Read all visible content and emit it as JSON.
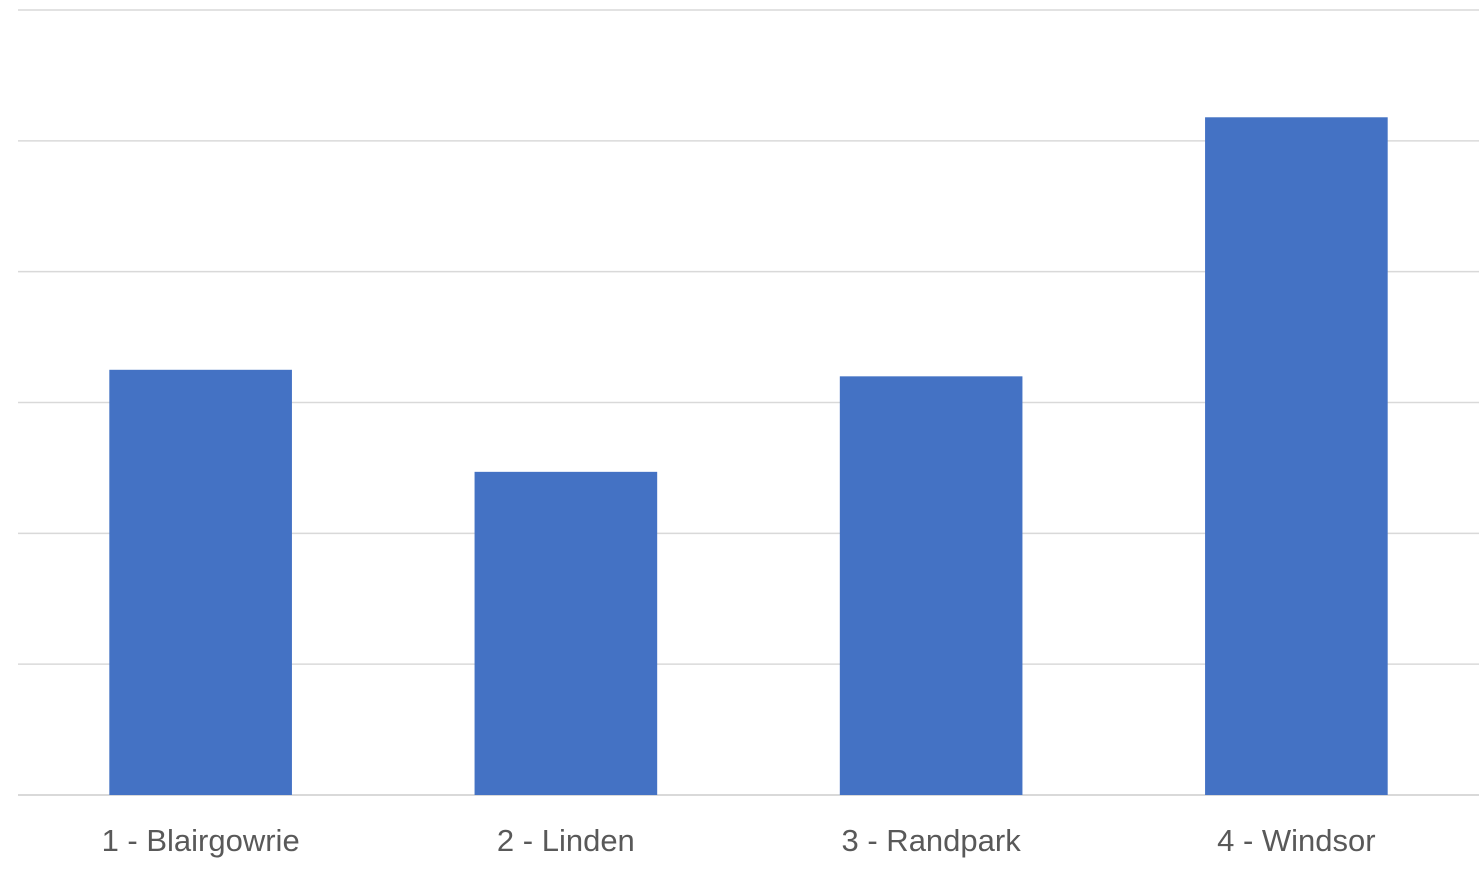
{
  "chart_data": {
    "type": "bar",
    "categories": [
      "1 - Blairgowrie",
      "2 - Linden",
      "3 - Randpark",
      "4 - Windsor"
    ],
    "values": [
      3.25,
      2.47,
      3.2,
      5.18
    ],
    "title": "",
    "xlabel": "",
    "ylabel": "",
    "ylim": [
      0,
      6
    ],
    "grid": true,
    "legend": "none",
    "bar_color": "#4472C4",
    "gridline_color": "#D9D9D9"
  }
}
